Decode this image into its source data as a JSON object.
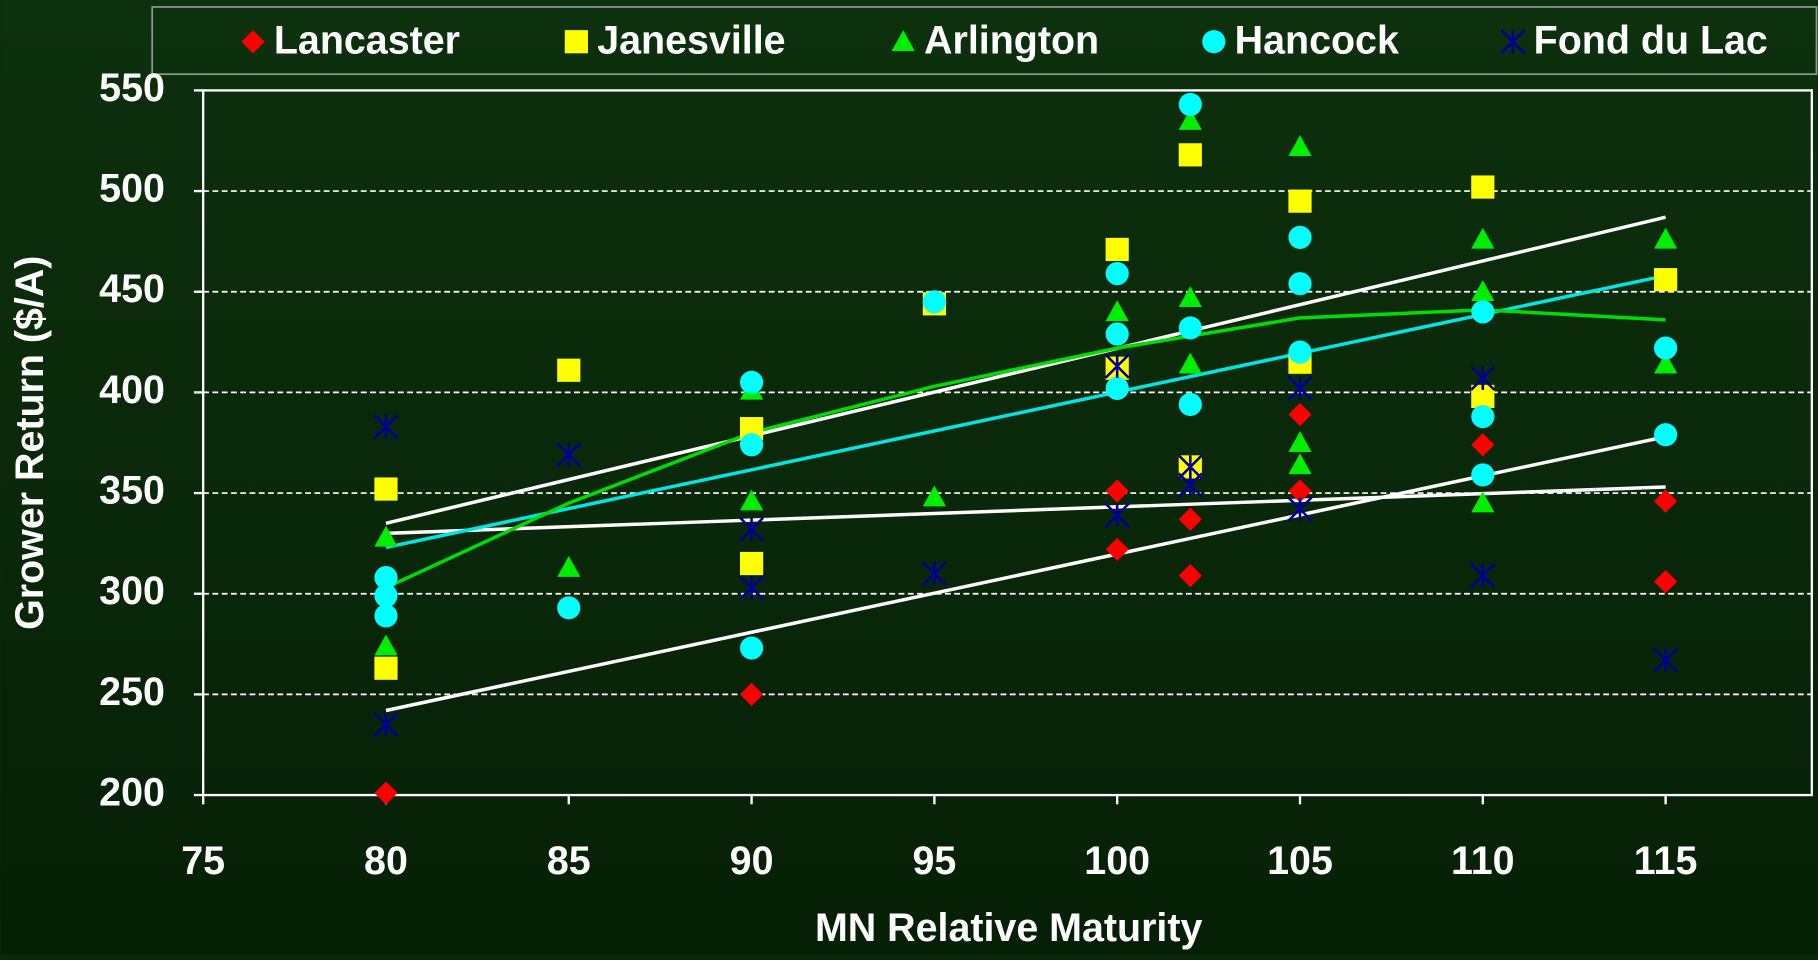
{
  "chart_data": {
    "type": "scatter",
    "y_label": "Grower Return ($/A)",
    "x_label": "MN Relative Maturity",
    "xlim": [
      75,
      119
    ],
    "xticks": [
      75,
      80,
      85,
      90,
      95,
      100,
      105,
      110,
      115
    ],
    "ylim": [
      200,
      550
    ],
    "yticks": [
      200,
      250,
      300,
      350,
      400,
      450,
      500,
      550
    ],
    "grid": true,
    "legend": "top",
    "series": [
      {
        "name": "Lancaster",
        "color": "#ff0000",
        "marker": "diamond",
        "x": [
          80,
          90,
          100,
          100,
          102,
          102,
          105,
          105,
          110,
          115,
          115
        ],
        "values": [
          201,
          250,
          351,
          322,
          337,
          309,
          389,
          351,
          374,
          346,
          306
        ]
      },
      {
        "name": "Janesville",
        "color": "#ffff00",
        "marker": "square",
        "x": [
          80,
          80,
          85,
          90,
          90,
          95,
          100,
          100,
          102,
          102,
          105,
          105,
          110,
          110,
          115
        ],
        "values": [
          352,
          263,
          411,
          382,
          315,
          444,
          471,
          412,
          518,
          363,
          495,
          415,
          502,
          398,
          456
        ]
      },
      {
        "name": "Arlington",
        "color": "#00ee00",
        "marker": "triangle",
        "x": [
          80,
          80,
          85,
          90,
          90,
          95,
          100,
          102,
          102,
          102,
          105,
          105,
          105,
          110,
          110,
          110,
          115,
          115
        ],
        "values": [
          328,
          274,
          313,
          401,
          346,
          348,
          440,
          535,
          447,
          414,
          522,
          375,
          364,
          476,
          450,
          345,
          476,
          414
        ]
      },
      {
        "name": "Hancock",
        "color": "#00ffff",
        "marker": "circle",
        "x": [
          80,
          80,
          80,
          85,
          90,
          90,
          90,
          95,
          100,
          100,
          100,
          102,
          102,
          102,
          105,
          105,
          105,
          110,
          110,
          110,
          115,
          115
        ],
        "values": [
          308,
          299,
          289,
          293,
          405,
          374,
          273,
          445,
          459,
          429,
          402,
          543,
          432,
          394,
          477,
          454,
          420,
          440,
          388,
          359,
          422,
          379
        ]
      },
      {
        "name": "Fond du Lac",
        "color": "#000099",
        "marker": "asterisk",
        "x": [
          80,
          80,
          85,
          90,
          90,
          95,
          100,
          100,
          102,
          102,
          105,
          105,
          110,
          110,
          115
        ],
        "values": [
          383,
          235,
          369,
          332,
          303,
          310,
          413,
          339,
          363,
          354,
          402,
          342,
          407,
          309,
          267
        ]
      }
    ],
    "trendlines": [
      {
        "color": "#ffffff",
        "x": [
          80,
          115
        ],
        "values": [
          335,
          487
        ]
      },
      {
        "color": "#ffffff",
        "x": [
          80,
          115
        ],
        "values": [
          242,
          378
        ]
      },
      {
        "color": "#ffffff",
        "x": [
          80,
          115
        ],
        "values": [
          330,
          353
        ]
      },
      {
        "color": "#00e5e5",
        "x": [
          80,
          115
        ],
        "values": [
          323,
          458
        ]
      },
      {
        "color": "#00dd00",
        "x": [
          80,
          85,
          90,
          95,
          100,
          105,
          110,
          115
        ],
        "values": [
          303,
          345,
          380,
          403,
          422,
          437,
          441,
          436
        ]
      }
    ]
  }
}
